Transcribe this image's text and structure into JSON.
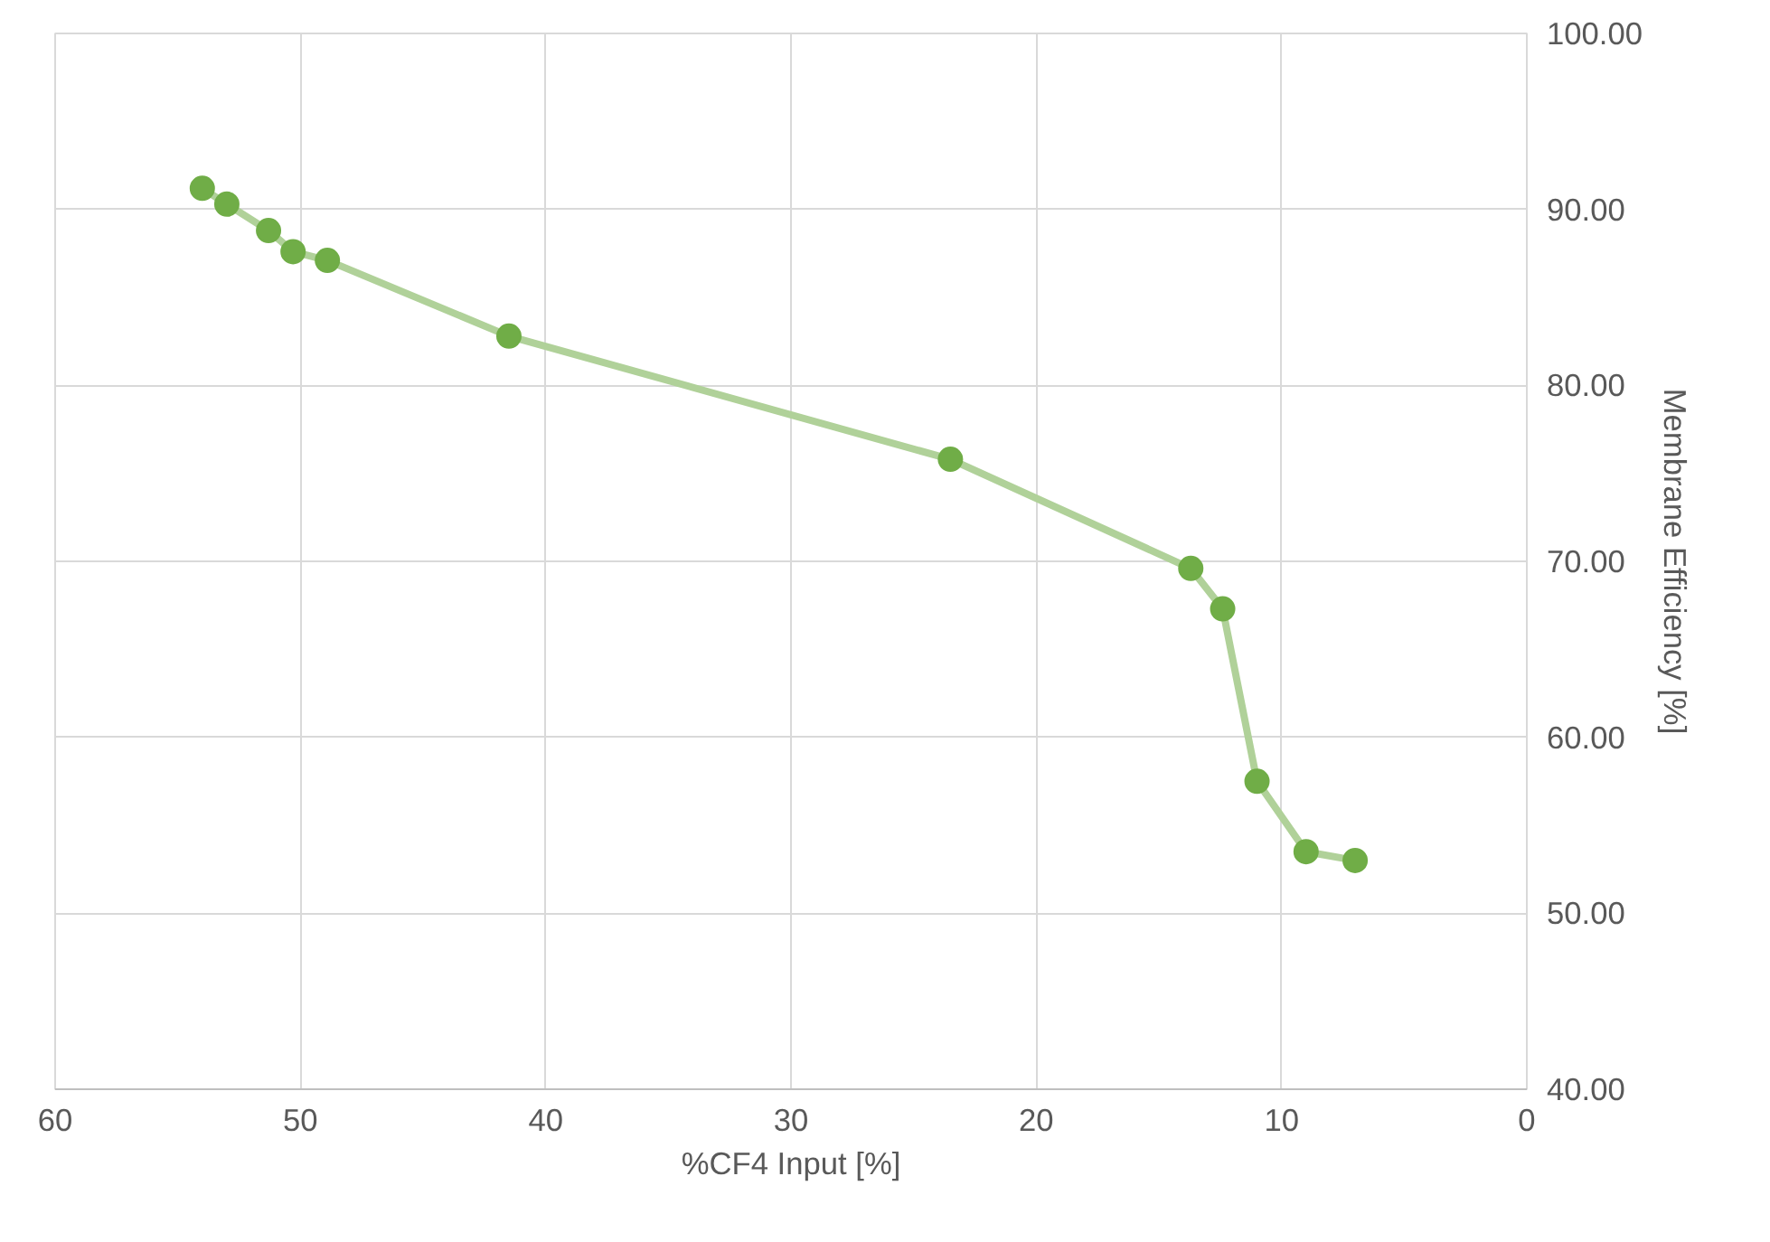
{
  "chart_data": {
    "type": "line",
    "xlabel": "%CF4 Input [%]",
    "ylabel": "Membrane Efficiency [%]",
    "x": [
      54.0,
      53.0,
      51.3,
      50.3,
      48.9,
      41.5,
      23.5,
      13.7,
      12.4,
      11.0,
      9.0,
      7.0
    ],
    "series": [
      {
        "color": "#70ad47",
        "values": [
          91.2,
          90.3,
          88.8,
          87.6,
          87.1,
          82.8,
          75.8,
          69.6,
          67.3,
          57.5,
          53.5,
          53.0
        ]
      }
    ],
    "xlim": [
      60,
      0
    ],
    "xticks": [
      60,
      50,
      40,
      30,
      20,
      10,
      0
    ],
    "ylim": [
      40,
      100
    ],
    "yticks": [
      {
        "value": 40,
        "label": "40.00"
      },
      {
        "value": 50,
        "label": "50.00"
      },
      {
        "value": 60,
        "label": "60.00"
      },
      {
        "value": 70,
        "label": "70.00"
      },
      {
        "value": 80,
        "label": "80.00"
      },
      {
        "value": 90,
        "label": "90.00"
      },
      {
        "value": 100,
        "label": "100.00"
      }
    ],
    "grid": true,
    "marker": "circle",
    "line_style": "solid"
  }
}
